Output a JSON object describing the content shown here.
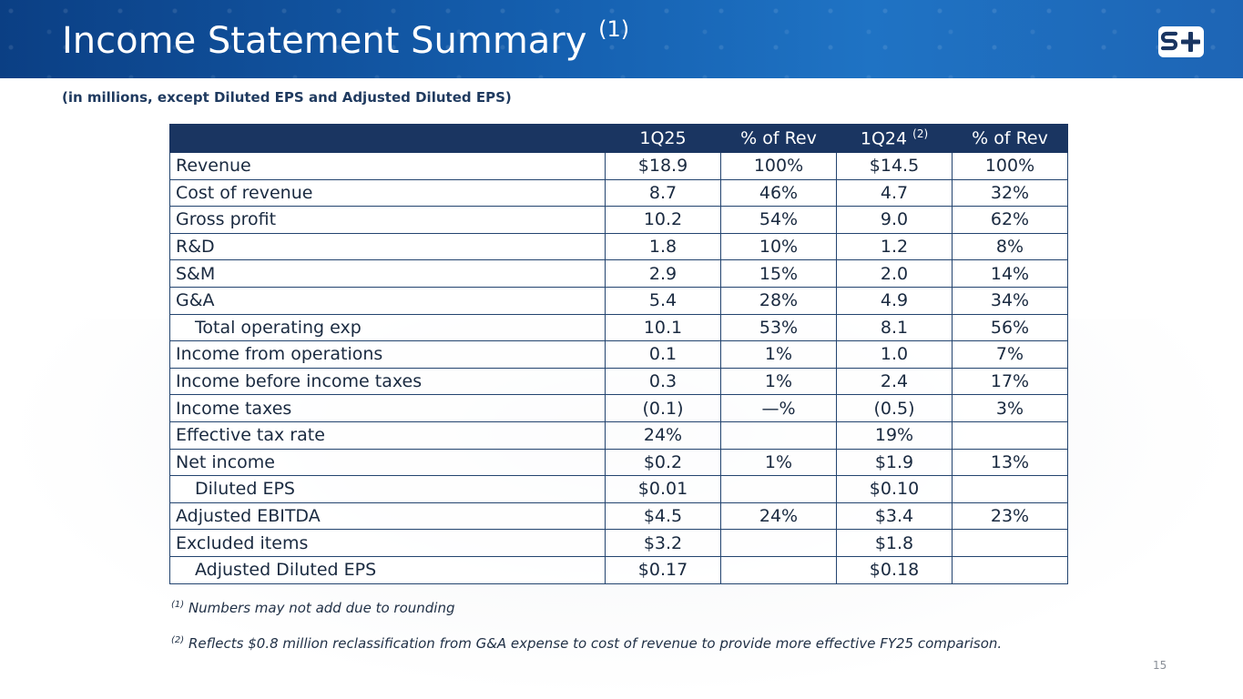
{
  "header": {
    "title": "Income Statement Summary",
    "title_sup": "(1)",
    "logo_icon": "s-plus-logo-icon"
  },
  "subtitle": "(in millions, except Diluted EPS and Adjusted Diluted EPS)",
  "table": {
    "columns": [
      "",
      "1Q25",
      "% of Rev",
      "1Q24",
      "% of Rev"
    ],
    "col3_sup": "(2)",
    "rows": [
      {
        "label": "Revenue",
        "q25": "$18.9",
        "q25pct": "100%",
        "q24": "$14.5",
        "q24pct": "100%"
      },
      {
        "label": "Cost of revenue",
        "q25": "8.7",
        "q25pct": "46%",
        "q24": "4.7",
        "q24pct": "32%"
      },
      {
        "label": "Gross profit",
        "q25": "10.2",
        "q25pct": "54%",
        "q24": "9.0",
        "q24pct": "62%"
      },
      {
        "label": "R&D",
        "q25": "1.8",
        "q25pct": "10%",
        "q24": "1.2",
        "q24pct": "8%"
      },
      {
        "label": "S&M",
        "q25": "2.9",
        "q25pct": "15%",
        "q24": "2.0",
        "q24pct": "14%"
      },
      {
        "label": "G&A",
        "q25": "5.4",
        "q25pct": "28%",
        "q24": "4.9",
        "q24pct": "34%"
      },
      {
        "label": "Total operating exp",
        "q25": "10.1",
        "q25pct": "53%",
        "q24": "8.1",
        "q24pct": "56%"
      },
      {
        "label": "Income from operations",
        "q25": "0.1",
        "q25pct": "1%",
        "q24": "1.0",
        "q24pct": "7%"
      },
      {
        "label": "Income before income taxes",
        "q25": "0.3",
        "q25pct": "1%",
        "q24": "2.4",
        "q24pct": "17%"
      },
      {
        "label": "Income taxes",
        "q25": "(0.1)",
        "q25pct": "—%",
        "q24": "(0.5)",
        "q24pct": "3%"
      },
      {
        "label": "Effective tax rate",
        "q25": "24%",
        "q25pct": "",
        "q24": "19%",
        "q24pct": ""
      },
      {
        "label": "Net income",
        "q25": "$0.2",
        "q25pct": "1%",
        "q24": "$1.9",
        "q24pct": "13%"
      },
      {
        "label": "Diluted EPS",
        "q25": "$0.01",
        "q25pct": "",
        "q24": "$0.10",
        "q24pct": ""
      },
      {
        "label": "Adjusted EBITDA",
        "q25": "$4.5",
        "q25pct": "24%",
        "q24": "$3.4",
        "q24pct": "23%"
      },
      {
        "label": "Excluded items",
        "q25": "$3.2",
        "q25pct": "",
        "q24": "$1.8",
        "q24pct": ""
      },
      {
        "label": "Adjusted Diluted EPS",
        "q25": "$0.17",
        "q25pct": "",
        "q24": "$0.18",
        "q24pct": ""
      }
    ]
  },
  "footnotes": {
    "fn1_marker": "(1)",
    "fn1_text": "Numbers may not add due to rounding",
    "fn2_marker": "(2)",
    "fn2_text": "Reflects $0.8 million reclassification from G&A expense to cost of revenue to provide more effective FY25 comparison."
  },
  "page_number": "15",
  "colors": {
    "banner": "#1560b0",
    "table_header": "#1a3561",
    "grid": "#23446f"
  }
}
